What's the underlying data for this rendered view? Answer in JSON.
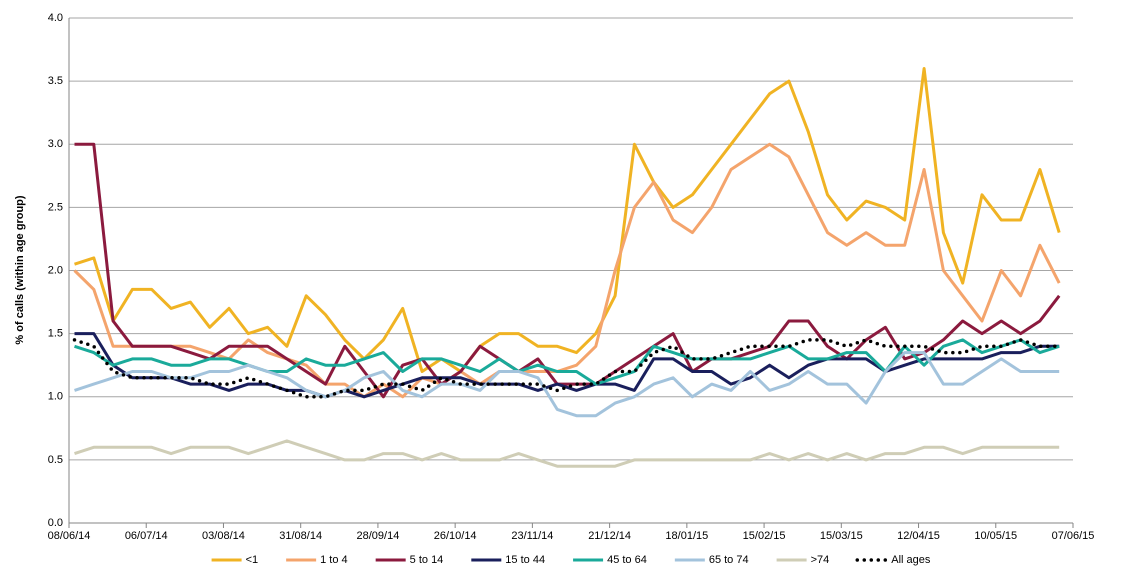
{
  "chart_data": {
    "type": "line",
    "y_label": "% of calls (within age group)",
    "x": [
      "10/06/14",
      "17/06/14",
      "24/06/14",
      "01/07/14",
      "08/07/14",
      "15/07/14",
      "22/07/14",
      "29/07/14",
      "05/08/14",
      "12/08/14",
      "19/08/14",
      "26/08/14",
      "02/09/14",
      "09/09/14",
      "16/09/14",
      "23/09/14",
      "30/09/14",
      "07/10/14",
      "14/10/14",
      "21/10/14",
      "28/10/14",
      "04/11/14",
      "11/11/14",
      "18/11/14",
      "25/11/14",
      "02/12/14",
      "09/12/14",
      "16/12/14",
      "23/12/14",
      "30/12/14",
      "06/01/15",
      "13/01/15",
      "20/01/15",
      "27/01/15",
      "03/02/15",
      "10/02/15",
      "17/02/15",
      "24/02/15",
      "03/03/15",
      "10/03/15",
      "17/03/15",
      "24/03/15",
      "31/03/15",
      "07/04/15",
      "14/04/15",
      "21/04/15",
      "28/04/15",
      "05/05/15",
      "12/05/15",
      "19/05/15",
      "26/05/15",
      "02/06/15"
    ],
    "xlim": [
      "08/06/14",
      "07/06/15"
    ],
    "xticks": [
      "08/06/14",
      "06/07/14",
      "03/08/14",
      "31/08/14",
      "28/09/14",
      "26/10/14",
      "23/11/14",
      "21/12/14",
      "18/01/15",
      "15/02/15",
      "15/03/15",
      "12/04/15",
      "10/05/15",
      "07/06/15"
    ],
    "ylim": [
      0,
      4
    ],
    "yticks": [
      {
        "value": 0,
        "label": "0.0"
      },
      {
        "value": 0.5,
        "label": "0.5"
      },
      {
        "value": 1,
        "label": "1.0"
      },
      {
        "value": 1.5,
        "label": "1.5"
      },
      {
        "value": 2,
        "label": "2.0"
      },
      {
        "value": 2.5,
        "label": "2.5"
      },
      {
        "value": 3,
        "label": "3.0"
      },
      {
        "value": 3.5,
        "label": "3.5"
      },
      {
        "value": 4,
        "label": "4.0"
      }
    ],
    "grid": true,
    "legend": "bottom",
    "series": [
      {
        "name": "<1",
        "color": "#f0b323",
        "values": [
          2.05,
          2.1,
          1.6,
          1.85,
          1.85,
          1.7,
          1.75,
          1.55,
          1.7,
          1.5,
          1.55,
          1.4,
          1.8,
          1.65,
          1.45,
          1.3,
          1.45,
          1.7,
          1.2,
          1.3,
          1.2,
          1.4,
          1.5,
          1.5,
          1.4,
          1.4,
          1.35,
          1.5,
          1.8,
          3.0,
          2.7,
          2.5,
          2.6,
          2.8,
          3.0,
          3.2,
          3.4,
          3.5,
          3.1,
          2.6,
          2.4,
          2.55,
          2.5,
          2.4,
          3.6,
          2.3,
          1.9,
          2.6,
          2.4,
          2.4,
          2.8,
          2.3
        ]
      },
      {
        "name": "1 to 4",
        "color": "#f4a46c",
        "values": [
          2.0,
          1.85,
          1.4,
          1.4,
          1.4,
          1.4,
          1.4,
          1.35,
          1.3,
          1.45,
          1.35,
          1.3,
          1.25,
          1.1,
          1.1,
          1.0,
          1.1,
          1.0,
          1.15,
          1.1,
          1.2,
          1.1,
          1.2,
          1.2,
          1.2,
          1.2,
          1.25,
          1.4,
          2.0,
          2.5,
          2.7,
          2.4,
          2.3,
          2.5,
          2.8,
          2.9,
          3.0,
          2.9,
          2.6,
          2.3,
          2.2,
          2.3,
          2.2,
          2.2,
          2.8,
          2.0,
          1.8,
          1.6,
          2.0,
          1.8,
          2.2,
          1.9
        ]
      },
      {
        "name": "5 to 14",
        "color": "#8b1a3e",
        "values": [
          3.0,
          3.0,
          1.6,
          1.4,
          1.4,
          1.4,
          1.35,
          1.3,
          1.4,
          1.4,
          1.4,
          1.3,
          1.2,
          1.1,
          1.4,
          1.2,
          1.0,
          1.25,
          1.3,
          1.1,
          1.2,
          1.4,
          1.3,
          1.2,
          1.3,
          1.1,
          1.1,
          1.1,
          1.2,
          1.3,
          1.4,
          1.5,
          1.2,
          1.3,
          1.3,
          1.35,
          1.4,
          1.6,
          1.6,
          1.4,
          1.3,
          1.45,
          1.55,
          1.3,
          1.35,
          1.45,
          1.6,
          1.5,
          1.6,
          1.5,
          1.6,
          1.8
        ]
      },
      {
        "name": "15 to 44",
        "color": "#1a1f5c",
        "values": [
          1.5,
          1.5,
          1.25,
          1.15,
          1.15,
          1.15,
          1.1,
          1.1,
          1.05,
          1.1,
          1.1,
          1.05,
          1.05,
          1.0,
          1.05,
          1.0,
          1.05,
          1.1,
          1.15,
          1.15,
          1.15,
          1.1,
          1.1,
          1.1,
          1.05,
          1.1,
          1.05,
          1.1,
          1.1,
          1.05,
          1.3,
          1.3,
          1.2,
          1.2,
          1.1,
          1.15,
          1.25,
          1.15,
          1.25,
          1.3,
          1.3,
          1.3,
          1.2,
          1.25,
          1.3,
          1.3,
          1.3,
          1.3,
          1.35,
          1.35,
          1.4,
          1.4
        ]
      },
      {
        "name": "45 to 64",
        "color": "#1aaa9a",
        "values": [
          1.4,
          1.35,
          1.25,
          1.3,
          1.3,
          1.25,
          1.25,
          1.3,
          1.3,
          1.25,
          1.2,
          1.2,
          1.3,
          1.25,
          1.25,
          1.3,
          1.35,
          1.2,
          1.3,
          1.3,
          1.25,
          1.2,
          1.3,
          1.2,
          1.25,
          1.2,
          1.2,
          1.1,
          1.15,
          1.2,
          1.4,
          1.35,
          1.3,
          1.3,
          1.3,
          1.3,
          1.35,
          1.4,
          1.3,
          1.3,
          1.35,
          1.35,
          1.2,
          1.4,
          1.25,
          1.4,
          1.45,
          1.35,
          1.4,
          1.45,
          1.35,
          1.4
        ]
      },
      {
        "name": "65 to 74",
        "color": "#a3c3dc",
        "values": [
          1.05,
          1.1,
          1.15,
          1.2,
          1.2,
          1.15,
          1.15,
          1.2,
          1.2,
          1.25,
          1.2,
          1.15,
          1.05,
          1.0,
          1.05,
          1.15,
          1.2,
          1.05,
          1.0,
          1.1,
          1.1,
          1.05,
          1.2,
          1.2,
          1.15,
          0.9,
          0.85,
          0.85,
          0.95,
          1.0,
          1.1,
          1.15,
          1.0,
          1.1,
          1.05,
          1.2,
          1.05,
          1.1,
          1.2,
          1.1,
          1.1,
          0.95,
          1.2,
          1.35,
          1.35,
          1.1,
          1.1,
          1.2,
          1.3,
          1.2,
          1.2,
          1.2
        ]
      },
      {
        "name": ">74",
        "color": "#cfcdb6",
        "values": [
          0.55,
          0.6,
          0.6,
          0.6,
          0.6,
          0.55,
          0.6,
          0.6,
          0.6,
          0.55,
          0.6,
          0.65,
          0.6,
          0.55,
          0.5,
          0.5,
          0.55,
          0.55,
          0.5,
          0.55,
          0.5,
          0.5,
          0.5,
          0.55,
          0.5,
          0.45,
          0.45,
          0.45,
          0.45,
          0.5,
          0.5,
          0.5,
          0.5,
          0.5,
          0.5,
          0.5,
          0.55,
          0.5,
          0.55,
          0.5,
          0.55,
          0.5,
          0.55,
          0.55,
          0.6,
          0.6,
          0.55,
          0.6,
          0.6,
          0.6,
          0.6,
          0.6
        ]
      },
      {
        "name": "All ages",
        "color": "#000000",
        "line_style": "dotted",
        "values": [
          1.45,
          1.4,
          1.2,
          1.15,
          1.15,
          1.15,
          1.15,
          1.1,
          1.1,
          1.15,
          1.1,
          1.05,
          1.0,
          1.0,
          1.05,
          1.05,
          1.1,
          1.1,
          1.05,
          1.15,
          1.1,
          1.1,
          1.1,
          1.1,
          1.1,
          1.05,
          1.1,
          1.1,
          1.2,
          1.2,
          1.35,
          1.4,
          1.3,
          1.3,
          1.35,
          1.4,
          1.4,
          1.4,
          1.45,
          1.45,
          1.4,
          1.45,
          1.4,
          1.4,
          1.4,
          1.35,
          1.35,
          1.4,
          1.4,
          1.45,
          1.4,
          1.4
        ]
      }
    ]
  }
}
